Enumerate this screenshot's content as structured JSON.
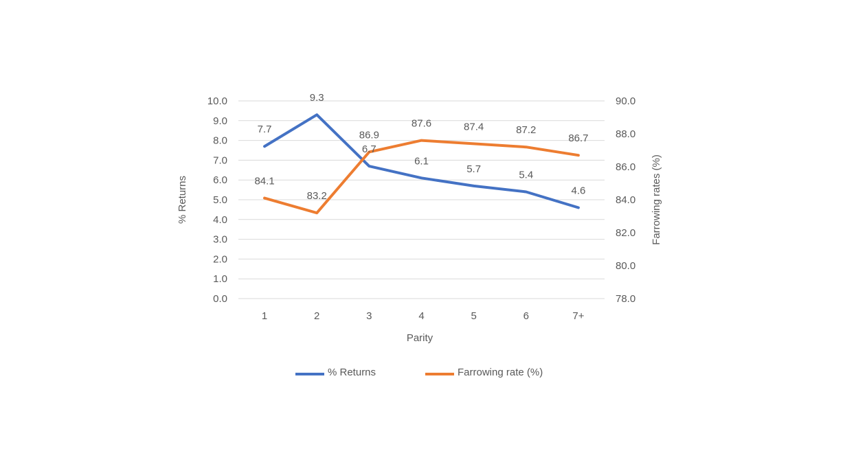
{
  "chart_data": {
    "type": "line",
    "title": "",
    "xlabel": "Parity",
    "ylabel": "% Returns",
    "ylabel_right": "Farrowing rates (%)",
    "categories": [
      "1",
      "2",
      "3",
      "4",
      "5",
      "6",
      "7+"
    ],
    "ylim": [
      0,
      10
    ],
    "ylim_right": [
      78,
      90
    ],
    "yticks": [
      "0.0",
      "1.0",
      "2.0",
      "3.0",
      "4.0",
      "5.0",
      "6.0",
      "7.0",
      "8.0",
      "9.0",
      "10.0"
    ],
    "yticks_right": [
      "78.0",
      "80.0",
      "82.0",
      "84.0",
      "86.0",
      "88.0",
      "90.0"
    ],
    "grid": true,
    "legend_position": "bottom",
    "series": [
      {
        "name": "% Returns",
        "axis": "left",
        "color": "#4472C4",
        "values": [
          7.7,
          9.3,
          6.7,
          6.1,
          5.7,
          5.4,
          4.6
        ],
        "labels": [
          "7.7",
          "9.3",
          "6.7",
          "6.1",
          "5.7",
          "5.4",
          "4.6"
        ]
      },
      {
        "name": "Farrowing rate (%)",
        "axis": "right",
        "color": "#ED7D31",
        "values": [
          84.1,
          83.2,
          86.9,
          87.6,
          87.4,
          87.2,
          86.7
        ],
        "labels": [
          "84.1",
          "83.2",
          "86.9",
          "87.6",
          "87.4",
          "87.2",
          "86.7"
        ]
      }
    ]
  }
}
